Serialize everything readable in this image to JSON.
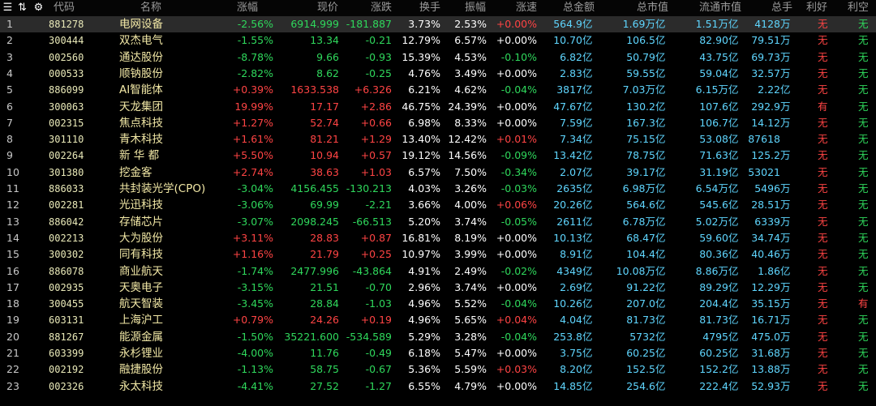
{
  "toolbar": {
    "menu_icon": "menu-icon",
    "sort_icon": "sort-icon",
    "gear_icon": "gear-icon"
  },
  "headers": {
    "code": "代码",
    "name": "名称",
    "pct": "涨幅",
    "price": "现价",
    "chg": "涨跌",
    "turnover": "换手",
    "amplitude": "振幅",
    "speed": "涨速",
    "amount": "总金额",
    "mktcap": "总市值",
    "floatcap": "流通市值",
    "vol": "总手",
    "good": "利好",
    "bad": "利空"
  },
  "colors": {
    "up": "#ff4444",
    "down": "#2fd85c",
    "flat": "#ffffff",
    "value": "#5fd6ff",
    "name": "#f2e8a6",
    "selected_row": "#2b2b2b"
  },
  "rows": [
    {
      "idx": "1",
      "code": "881278",
      "name": "电网设备",
      "pct": "-2.56%",
      "price": "6914.999",
      "chg": "-181.887",
      "turnover": "3.73%",
      "amplitude": "2.53%",
      "speed": "+0.00%",
      "amount": "564.9",
      "amount_u": "亿",
      "mktcap": "1.69万",
      "mktcap_u": "亿",
      "floatcap": "1.51万",
      "floatcap_u": "亿",
      "vol": "4128",
      "vol_u": "万",
      "good": "无",
      "bad": "无",
      "dir": "dn",
      "speed_dir": "up"
    },
    {
      "idx": "2",
      "code": "300444",
      "name": "双杰电气",
      "pct": "-1.55%",
      "price": "13.34",
      "chg": "-0.21",
      "turnover": "12.79%",
      "amplitude": "6.57%",
      "speed": "+0.00%",
      "amount": "10.70",
      "amount_u": "亿",
      "mktcap": "106.5",
      "mktcap_u": "亿",
      "floatcap": "82.90",
      "floatcap_u": "亿",
      "vol": "79.51",
      "vol_u": "万",
      "good": "无",
      "bad": "无",
      "dir": "dn",
      "speed_dir": "wh"
    },
    {
      "idx": "3",
      "code": "002560",
      "name": "通达股份",
      "pct": "-8.78%",
      "price": "9.66",
      "chg": "-0.93",
      "turnover": "15.39%",
      "amplitude": "4.53%",
      "speed": "-0.10%",
      "amount": "6.82",
      "amount_u": "亿",
      "mktcap": "50.79",
      "mktcap_u": "亿",
      "floatcap": "43.75",
      "floatcap_u": "亿",
      "vol": "69.73",
      "vol_u": "万",
      "good": "无",
      "bad": "无",
      "dir": "dn",
      "speed_dir": "dn"
    },
    {
      "idx": "4",
      "code": "000533",
      "name": "顺钠股份",
      "pct": "-2.82%",
      "price": "8.62",
      "chg": "-0.25",
      "turnover": "4.76%",
      "amplitude": "3.49%",
      "speed": "+0.00%",
      "amount": "2.83",
      "amount_u": "亿",
      "mktcap": "59.55",
      "mktcap_u": "亿",
      "floatcap": "59.04",
      "floatcap_u": "亿",
      "vol": "32.57",
      "vol_u": "万",
      "good": "无",
      "bad": "无",
      "dir": "dn",
      "speed_dir": "wh"
    },
    {
      "idx": "5",
      "code": "886099",
      "name": "AI智能体",
      "pct": "+0.39%",
      "price": "1633.538",
      "chg": "+6.326",
      "turnover": "6.21%",
      "amplitude": "4.62%",
      "speed": "-0.04%",
      "amount": "3817",
      "amount_u": "亿",
      "mktcap": "7.03万",
      "mktcap_u": "亿",
      "floatcap": "6.15万",
      "floatcap_u": "亿",
      "vol": "2.22",
      "vol_u": "亿",
      "good": "无",
      "bad": "无",
      "dir": "up",
      "speed_dir": "dn"
    },
    {
      "idx": "6",
      "code": "300063",
      "name": "天龙集团",
      "pct": "19.99%",
      "price": "17.17",
      "chg": "+2.86",
      "turnover": "46.75%",
      "amplitude": "24.39%",
      "speed": "+0.00%",
      "amount": "47.67",
      "amount_u": "亿",
      "mktcap": "130.2",
      "mktcap_u": "亿",
      "floatcap": "107.6",
      "floatcap_u": "亿",
      "vol": "292.9",
      "vol_u": "万",
      "good": "有",
      "bad": "无",
      "dir": "up",
      "speed_dir": "wh"
    },
    {
      "idx": "7",
      "code": "002315",
      "name": "焦点科技",
      "pct": "+1.27%",
      "price": "52.74",
      "chg": "+0.66",
      "turnover": "6.98%",
      "amplitude": "8.33%",
      "speed": "+0.00%",
      "amount": "7.59",
      "amount_u": "亿",
      "mktcap": "167.3",
      "mktcap_u": "亿",
      "floatcap": "106.7",
      "floatcap_u": "亿",
      "vol": "14.12",
      "vol_u": "万",
      "good": "无",
      "bad": "无",
      "dir": "up",
      "speed_dir": "wh"
    },
    {
      "idx": "8",
      "code": "301110",
      "name": "青木科技",
      "pct": "+1.61%",
      "price": "81.21",
      "chg": "+1.29",
      "turnover": "13.40%",
      "amplitude": "12.42%",
      "speed": "+0.01%",
      "amount": "7.34",
      "amount_u": "亿",
      "mktcap": "75.15",
      "mktcap_u": "亿",
      "floatcap": "53.08",
      "floatcap_u": "亿",
      "vol": "87618",
      "vol_u": "",
      "good": "无",
      "bad": "无",
      "dir": "up",
      "speed_dir": "up"
    },
    {
      "idx": "9",
      "code": "002264",
      "name": "新 华 都",
      "pct": "+5.50%",
      "price": "10.94",
      "chg": "+0.57",
      "turnover": "19.12%",
      "amplitude": "14.56%",
      "speed": "-0.09%",
      "amount": "13.42",
      "amount_u": "亿",
      "mktcap": "78.75",
      "mktcap_u": "亿",
      "floatcap": "71.63",
      "floatcap_u": "亿",
      "vol": "125.2",
      "vol_u": "万",
      "good": "无",
      "bad": "无",
      "dir": "up",
      "speed_dir": "dn"
    },
    {
      "idx": "10",
      "code": "301380",
      "name": "挖金客",
      "pct": "+2.74%",
      "price": "38.63",
      "chg": "+1.03",
      "turnover": "6.57%",
      "amplitude": "7.50%",
      "speed": "-0.34%",
      "amount": "2.07",
      "amount_u": "亿",
      "mktcap": "39.17",
      "mktcap_u": "亿",
      "floatcap": "31.19",
      "floatcap_u": "亿",
      "vol": "53021",
      "vol_u": "",
      "good": "无",
      "bad": "无",
      "dir": "up",
      "speed_dir": "dn"
    },
    {
      "idx": "11",
      "code": "886033",
      "name": "共封装光学(CPO)",
      "pct": "-3.04%",
      "price": "4156.455",
      "chg": "-130.213",
      "turnover": "4.03%",
      "amplitude": "3.26%",
      "speed": "-0.03%",
      "amount": "2635",
      "amount_u": "亿",
      "mktcap": "6.98万",
      "mktcap_u": "亿",
      "floatcap": "6.54万",
      "floatcap_u": "亿",
      "vol": "5496",
      "vol_u": "万",
      "good": "无",
      "bad": "无",
      "dir": "dn",
      "speed_dir": "dn"
    },
    {
      "idx": "12",
      "code": "002281",
      "name": "光迅科技",
      "pct": "-3.06%",
      "price": "69.99",
      "chg": "-2.21",
      "turnover": "3.66%",
      "amplitude": "4.00%",
      "speed": "+0.06%",
      "amount": "20.26",
      "amount_u": "亿",
      "mktcap": "564.6",
      "mktcap_u": "亿",
      "floatcap": "545.6",
      "floatcap_u": "亿",
      "vol": "28.51",
      "vol_u": "万",
      "good": "无",
      "bad": "无",
      "dir": "dn",
      "speed_dir": "up"
    },
    {
      "idx": "13",
      "code": "886042",
      "name": "存储芯片",
      "pct": "-3.07%",
      "price": "2098.245",
      "chg": "-66.513",
      "turnover": "5.20%",
      "amplitude": "3.74%",
      "speed": "-0.05%",
      "amount": "2611",
      "amount_u": "亿",
      "mktcap": "6.78万",
      "mktcap_u": "亿",
      "floatcap": "5.02万",
      "floatcap_u": "亿",
      "vol": "6339",
      "vol_u": "万",
      "good": "无",
      "bad": "无",
      "dir": "dn",
      "speed_dir": "dn"
    },
    {
      "idx": "14",
      "code": "002213",
      "name": "大为股份",
      "pct": "+3.11%",
      "price": "28.83",
      "chg": "+0.87",
      "turnover": "16.81%",
      "amplitude": "8.19%",
      "speed": "+0.00%",
      "amount": "10.13",
      "amount_u": "亿",
      "mktcap": "68.47",
      "mktcap_u": "亿",
      "floatcap": "59.60",
      "floatcap_u": "亿",
      "vol": "34.74",
      "vol_u": "万",
      "good": "无",
      "bad": "无",
      "dir": "up",
      "speed_dir": "wh"
    },
    {
      "idx": "15",
      "code": "300302",
      "name": "同有科技",
      "pct": "+1.16%",
      "price": "21.79",
      "chg": "+0.25",
      "turnover": "10.97%",
      "amplitude": "3.99%",
      "speed": "+0.00%",
      "amount": "8.91",
      "amount_u": "亿",
      "mktcap": "104.4",
      "mktcap_u": "亿",
      "floatcap": "80.36",
      "floatcap_u": "亿",
      "vol": "40.46",
      "vol_u": "万",
      "good": "无",
      "bad": "无",
      "dir": "up",
      "speed_dir": "wh"
    },
    {
      "idx": "16",
      "code": "886078",
      "name": "商业航天",
      "pct": "-1.74%",
      "price": "2477.996",
      "chg": "-43.864",
      "turnover": "4.91%",
      "amplitude": "2.49%",
      "speed": "-0.02%",
      "amount": "4349",
      "amount_u": "亿",
      "mktcap": "10.08万",
      "mktcap_u": "亿",
      "floatcap": "8.86万",
      "floatcap_u": "亿",
      "vol": "1.86",
      "vol_u": "亿",
      "good": "无",
      "bad": "无",
      "dir": "dn",
      "speed_dir": "dn"
    },
    {
      "idx": "17",
      "code": "002935",
      "name": "天奥电子",
      "pct": "-3.15%",
      "price": "21.51",
      "chg": "-0.70",
      "turnover": "2.96%",
      "amplitude": "3.74%",
      "speed": "+0.00%",
      "amount": "2.69",
      "amount_u": "亿",
      "mktcap": "91.22",
      "mktcap_u": "亿",
      "floatcap": "89.29",
      "floatcap_u": "亿",
      "vol": "12.29",
      "vol_u": "万",
      "good": "无",
      "bad": "无",
      "dir": "dn",
      "speed_dir": "wh"
    },
    {
      "idx": "18",
      "code": "300455",
      "name": "航天智装",
      "pct": "-3.45%",
      "price": "28.84",
      "chg": "-1.03",
      "turnover": "4.96%",
      "amplitude": "5.52%",
      "speed": "-0.04%",
      "amount": "10.26",
      "amount_u": "亿",
      "mktcap": "207.0",
      "mktcap_u": "亿",
      "floatcap": "204.4",
      "floatcap_u": "亿",
      "vol": "35.15",
      "vol_u": "万",
      "good": "无",
      "bad": "有",
      "dir": "dn",
      "speed_dir": "dn"
    },
    {
      "idx": "19",
      "code": "603131",
      "name": "上海沪工",
      "pct": "+0.79%",
      "price": "24.26",
      "chg": "+0.19",
      "turnover": "4.96%",
      "amplitude": "5.65%",
      "speed": "+0.04%",
      "amount": "4.04",
      "amount_u": "亿",
      "mktcap": "81.73",
      "mktcap_u": "亿",
      "floatcap": "81.73",
      "floatcap_u": "亿",
      "vol": "16.71",
      "vol_u": "万",
      "good": "无",
      "bad": "无",
      "dir": "up",
      "speed_dir": "up"
    },
    {
      "idx": "20",
      "code": "881267",
      "name": "能源金属",
      "pct": "-1.50%",
      "price": "35221.600",
      "chg": "-534.589",
      "turnover": "5.29%",
      "amplitude": "3.28%",
      "speed": "-0.04%",
      "amount": "253.8",
      "amount_u": "亿",
      "mktcap": "5732",
      "mktcap_u": "亿",
      "floatcap": "4795",
      "floatcap_u": "亿",
      "vol": "475.0",
      "vol_u": "万",
      "good": "无",
      "bad": "无",
      "dir": "dn",
      "speed_dir": "dn"
    },
    {
      "idx": "21",
      "code": "603399",
      "name": "永杉锂业",
      "pct": "-4.00%",
      "price": "11.76",
      "chg": "-0.49",
      "turnover": "6.18%",
      "amplitude": "5.47%",
      "speed": "+0.00%",
      "amount": "3.75",
      "amount_u": "亿",
      "mktcap": "60.25",
      "mktcap_u": "亿",
      "floatcap": "60.25",
      "floatcap_u": "亿",
      "vol": "31.68",
      "vol_u": "万",
      "good": "无",
      "bad": "无",
      "dir": "dn",
      "speed_dir": "wh"
    },
    {
      "idx": "22",
      "code": "002192",
      "name": "融捷股份",
      "pct": "-1.13%",
      "price": "58.75",
      "chg": "-0.67",
      "turnover": "5.36%",
      "amplitude": "5.59%",
      "speed": "+0.03%",
      "amount": "8.20",
      "amount_u": "亿",
      "mktcap": "152.5",
      "mktcap_u": "亿",
      "floatcap": "152.2",
      "floatcap_u": "亿",
      "vol": "13.88",
      "vol_u": "万",
      "good": "无",
      "bad": "无",
      "dir": "dn",
      "speed_dir": "up"
    },
    {
      "idx": "23",
      "code": "002326",
      "name": "永太科技",
      "pct": "-4.41%",
      "price": "27.52",
      "chg": "-1.27",
      "turnover": "6.55%",
      "amplitude": "4.79%",
      "speed": "+0.00%",
      "amount": "14.85",
      "amount_u": "亿",
      "mktcap": "254.6",
      "mktcap_u": "亿",
      "floatcap": "222.4",
      "floatcap_u": "亿",
      "vol": "52.93",
      "vol_u": "万",
      "good": "无",
      "bad": "无",
      "dir": "dn",
      "speed_dir": "wh"
    }
  ]
}
